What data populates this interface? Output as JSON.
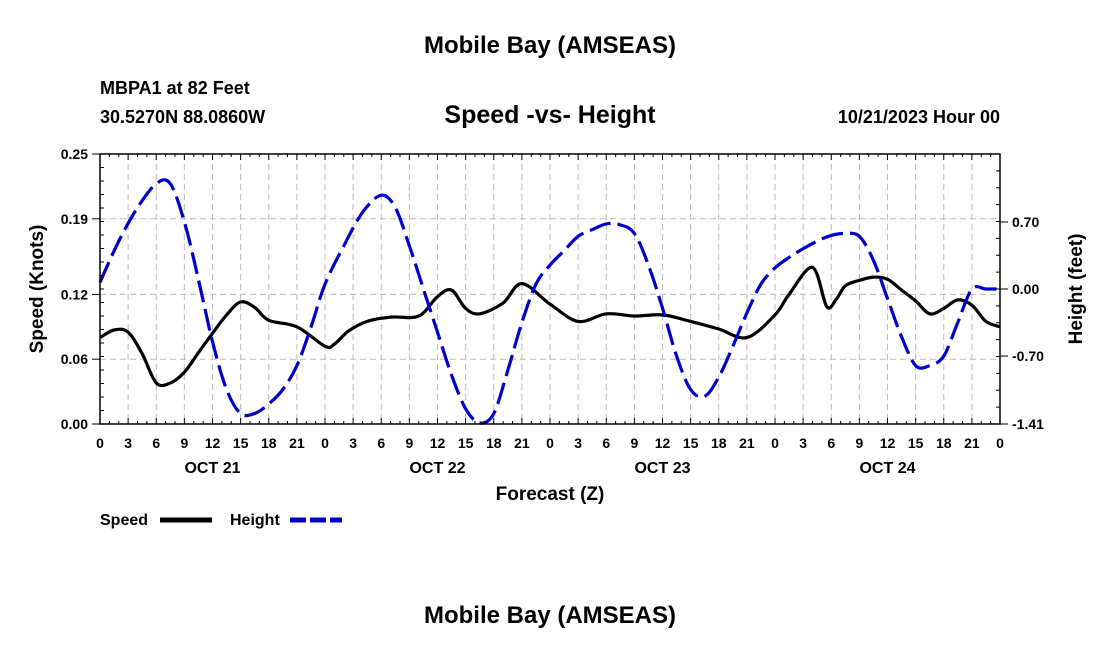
{
  "header": {
    "top_title": "Mobile Bay (AMSEAS)",
    "station": "MBPA1 at 82 Feet",
    "coords": "30.5270N  88.0860W",
    "timestamp": "10/21/2023 Hour 00",
    "bottom_title": "Mobile Bay (AMSEAS)"
  },
  "chart_data": {
    "type": "line",
    "title": "Speed -vs- Height",
    "xlabel": "Forecast (Z)",
    "ylabel_left": "Speed (Knots)",
    "ylabel_right": "Height (feet)",
    "x_hours_range": [
      0,
      96
    ],
    "ylim_left": [
      0,
      0.25
    ],
    "ylim_right": [
      -1.41,
      1.41
    ],
    "left_ticks": [
      0.0,
      0.06,
      0.12,
      0.19,
      0.25
    ],
    "left_tick_labels": [
      "0.00",
      "0.06",
      "0.12",
      "0.19",
      "0.25"
    ],
    "right_ticks": [
      -1.41,
      -0.7,
      0.0,
      0.7
    ],
    "right_tick_labels": [
      "-1.41",
      "-0.70",
      "0.00",
      "0.70"
    ],
    "x_tick_labels": [
      "0",
      "3",
      "6",
      "9",
      "12",
      "15",
      "18",
      "21",
      "0",
      "3",
      "6",
      "9",
      "12",
      "15",
      "18",
      "21",
      "0",
      "3",
      "6",
      "9",
      "12",
      "15",
      "18",
      "21",
      "0",
      "3",
      "6",
      "9",
      "12",
      "15",
      "18",
      "21",
      "0"
    ],
    "day_labels": [
      "OCT 21",
      "OCT 22",
      "OCT 23",
      "OCT 24"
    ],
    "grid": true,
    "legend": "bottom-left",
    "series": [
      {
        "name": "Speed",
        "axis": "left",
        "color": "#000000",
        "dash": "solid",
        "x": [
          0,
          1.5,
          3,
          4.5,
          6,
          7.5,
          9,
          10.5,
          12,
          13.5,
          15,
          16.5,
          18,
          21,
          24,
          25,
          26.5,
          28.5,
          31,
          34,
          36,
          37.5,
          39,
          40.5,
          43,
          45,
          48,
          51,
          54,
          57,
          60,
          63,
          66,
          69,
          72,
          73.5,
          76,
          77.5,
          78.5,
          79.5,
          81,
          82.5,
          84,
          85.5,
          87,
          88.5,
          90,
          91.5,
          93,
          94.5,
          96
        ],
        "values": [
          0.08,
          0.087,
          0.085,
          0.065,
          0.038,
          0.038,
          0.048,
          0.066,
          0.084,
          0.101,
          0.113,
          0.108,
          0.096,
          0.09,
          0.072,
          0.074,
          0.086,
          0.095,
          0.099,
          0.1,
          0.118,
          0.124,
          0.107,
          0.102,
          0.112,
          0.13,
          0.111,
          0.095,
          0.102,
          0.1,
          0.101,
          0.095,
          0.088,
          0.08,
          0.101,
          0.12,
          0.145,
          0.109,
          0.115,
          0.128,
          0.133,
          0.136,
          0.134,
          0.124,
          0.114,
          0.102,
          0.107,
          0.115,
          0.11,
          0.095,
          0.09
        ]
      },
      {
        "name": "Height",
        "axis": "right",
        "color": "#0000cc",
        "dash": "dashed",
        "x": [
          0,
          2,
          4,
          6,
          7.5,
          9,
          10.5,
          12,
          13.5,
          15,
          16.5,
          18,
          19.5,
          21,
          22.5,
          24,
          26,
          28,
          30,
          31.5,
          33,
          34.5,
          36,
          37.5,
          39,
          40.5,
          42,
          43.5,
          45,
          46.5,
          48,
          49.5,
          51,
          52.5,
          54,
          55.5,
          57,
          58.5,
          60,
          61.5,
          63,
          64.5,
          66,
          67.5,
          69,
          70.5,
          72,
          73.5,
          75,
          76.5,
          78,
          79.5,
          81,
          82.5,
          84,
          85.5,
          87,
          88.5,
          90,
          91.5,
          93,
          94.5,
          96
        ],
        "values": [
          0.07,
          0.5,
          0.85,
          1.1,
          1.1,
          0.7,
          0.1,
          -0.55,
          -1.05,
          -1.3,
          -1.3,
          -1.2,
          -1.05,
          -0.8,
          -0.4,
          0.05,
          0.45,
          0.8,
          0.98,
          0.85,
          0.45,
          0.0,
          -0.45,
          -0.9,
          -1.25,
          -1.4,
          -1.3,
          -0.85,
          -0.35,
          0.05,
          0.25,
          0.4,
          0.55,
          0.62,
          0.68,
          0.67,
          0.58,
          0.25,
          -0.2,
          -0.7,
          -1.05,
          -1.12,
          -0.92,
          -0.6,
          -0.25,
          0.05,
          0.22,
          0.33,
          0.42,
          0.5,
          0.56,
          0.58,
          0.55,
          0.3,
          -0.1,
          -0.5,
          -0.8,
          -0.8,
          -0.7,
          -0.35,
          0.0,
          0.0,
          0.0
        ]
      }
    ]
  }
}
